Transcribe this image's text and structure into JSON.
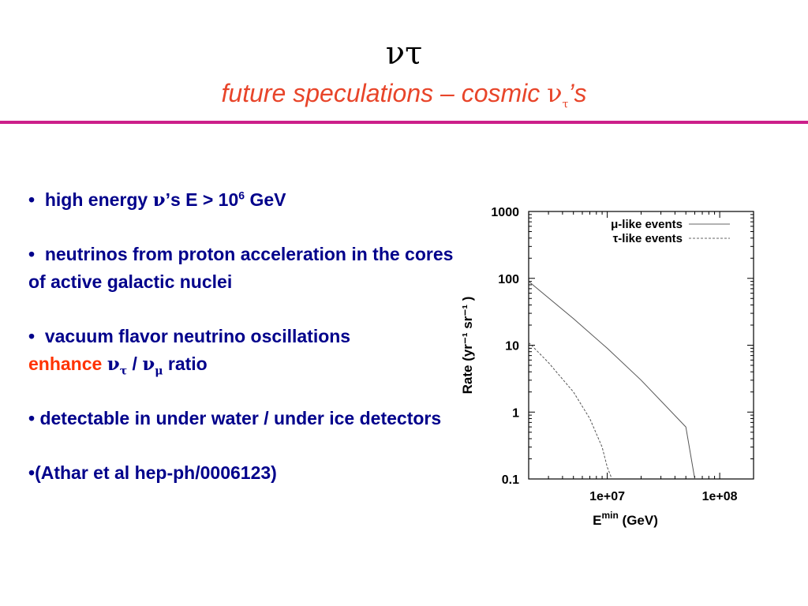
{
  "slide": {
    "title": "ντ",
    "subtitle_prefix": "future speculations – cosmic ",
    "subtitle_nu": "ν",
    "subtitle_tau": "τ",
    "subtitle_suffix": "’s"
  },
  "colors": {
    "accent": "#e8452a",
    "text": "#00008b",
    "rule": "#cc1f8a",
    "enhance": "#ff3300"
  },
  "bullets": [
    {
      "marker": "•",
      "pre": "high energy ",
      "sym": "ν",
      "post": "’s  E > 10",
      "sup": "6",
      "tail": " GeV"
    },
    {
      "marker": "•",
      "text": "neutrinos from proton acceleration in the cores of active galactic nuclei"
    },
    {
      "marker": "•",
      "text": "vacuum flavor neutrino oscillations",
      "enhance": "enhance",
      "nu1": "ν",
      "sub1": "τ",
      "slash": " / ",
      "nu2": "ν",
      "sub2": "μ",
      "ratio": " ratio"
    },
    {
      "marker": "•",
      "text": "detectable in under water / under ice detectors"
    },
    {
      "marker": "•",
      "text": "(Athar et al hep-ph/0006123)"
    }
  ],
  "chart_data": {
    "type": "line",
    "xlabel": "E",
    "xlabel_sup": "min",
    "xlabel_unit": " (GeV)",
    "ylabel": "Rate (yr⁻¹ sr⁻¹ )",
    "xscale": "log",
    "yscale": "log",
    "xlim": [
      2000000,
      200000000
    ],
    "ylim": [
      0.1,
      1000
    ],
    "x_ticks": [
      "1e+07",
      "1e+08"
    ],
    "y_ticks": [
      "1000",
      "100",
      "10",
      "1",
      "0.1"
    ],
    "legend": "top-right",
    "series": [
      {
        "name": "μ-like events",
        "style": "solid",
        "points": [
          [
            2000000,
            90
          ],
          [
            5000000,
            25
          ],
          [
            10000000,
            9
          ],
          [
            20000000,
            3
          ],
          [
            50000000,
            0.6
          ],
          [
            60000000,
            0.1
          ]
        ]
      },
      {
        "name": "τ-like events",
        "style": "dashed",
        "points": [
          [
            2000000,
            11
          ],
          [
            3000000,
            5.5
          ],
          [
            5000000,
            2
          ],
          [
            7000000,
            0.8
          ],
          [
            9000000,
            0.3
          ],
          [
            10000000,
            0.15
          ],
          [
            11000000,
            0.1
          ]
        ]
      }
    ]
  }
}
